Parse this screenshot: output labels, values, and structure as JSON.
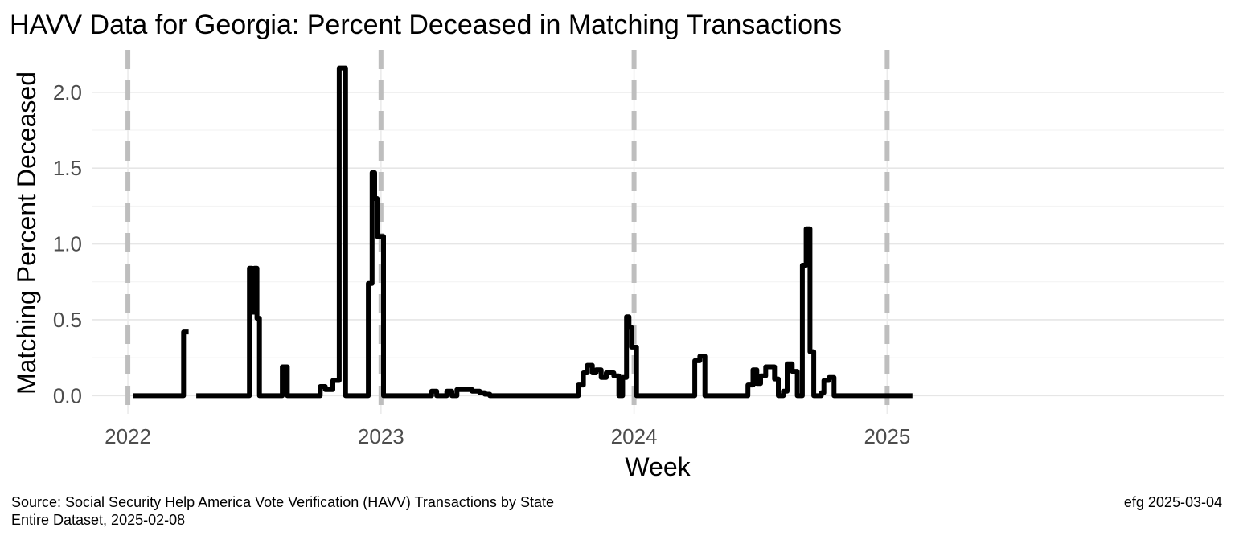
{
  "chart_data": {
    "type": "line",
    "style": "step",
    "title": "HAVV Data for Georgia:  Percent Deceased in Matching Transactions",
    "xlabel": "Week",
    "ylabel": "Matching Percent Deceased",
    "x_ticks": [
      "2022",
      "2023",
      "2024",
      "2025"
    ],
    "x_tick_values": [
      2022.0,
      2023.0,
      2024.0,
      2025.0
    ],
    "y_ticks": [
      "0.0",
      "0.5",
      "1.0",
      "1.5",
      "2.0"
    ],
    "y_tick_values": [
      0.0,
      0.5,
      1.0,
      1.5,
      2.0
    ],
    "xlim": [
      2021.86,
      2026.33
    ],
    "ylim": [
      -0.12,
      2.28
    ],
    "reference_lines": [
      2022.0,
      2023.0,
      2024.0,
      2025.0
    ],
    "reference_line_style": "dashed",
    "reference_line_color": "#bebebe",
    "line_color": "#000000",
    "grid": true,
    "series": [
      {
        "segments": [
          [
            [
              2022.02,
              0.0
            ],
            [
              2022.22,
              0.0
            ],
            [
              2022.22,
              0.42
            ],
            [
              2022.24,
              0.42
            ]
          ],
          [
            [
              2022.27,
              0.0
            ],
            [
              2022.48,
              0.0
            ],
            [
              2022.48,
              0.84
            ],
            [
              2022.49,
              0.84
            ],
            [
              2022.49,
              0.55
            ],
            [
              2022.5,
              0.55
            ],
            [
              2022.5,
              0.84
            ],
            [
              2022.51,
              0.84
            ],
            [
              2022.51,
              0.51
            ],
            [
              2022.52,
              0.51
            ],
            [
              2022.52,
              0.0
            ],
            [
              2022.61,
              0.0
            ],
            [
              2022.61,
              0.19
            ],
            [
              2022.63,
              0.19
            ],
            [
              2022.63,
              0.0
            ],
            [
              2022.76,
              0.0
            ],
            [
              2022.76,
              0.06
            ],
            [
              2022.78,
              0.06
            ],
            [
              2022.78,
              0.04
            ],
            [
              2022.81,
              0.04
            ],
            [
              2022.81,
              0.1
            ],
            [
              2022.835,
              0.1
            ],
            [
              2022.835,
              2.16
            ],
            [
              2022.86,
              2.16
            ],
            [
              2022.86,
              0.0
            ],
            [
              2022.95,
              0.0
            ],
            [
              2022.95,
              0.74
            ],
            [
              2022.965,
              0.74
            ],
            [
              2022.965,
              1.47
            ],
            [
              2022.975,
              1.47
            ],
            [
              2022.975,
              1.3
            ],
            [
              2022.985,
              1.3
            ],
            [
              2022.985,
              1.05
            ],
            [
              2023.01,
              1.05
            ],
            [
              2023.01,
              0.0
            ],
            [
              2023.2,
              0.0
            ],
            [
              2023.2,
              0.03
            ],
            [
              2023.22,
              0.03
            ],
            [
              2023.22,
              0.0
            ],
            [
              2023.26,
              0.0
            ],
            [
              2023.26,
              0.03
            ],
            [
              2023.28,
              0.03
            ],
            [
              2023.28,
              0.0
            ],
            [
              2023.3,
              0.0
            ],
            [
              2023.3,
              0.04
            ],
            [
              2023.36,
              0.04
            ],
            [
              2023.36,
              0.03
            ],
            [
              2023.39,
              0.03
            ],
            [
              2023.39,
              0.02
            ],
            [
              2023.41,
              0.02
            ],
            [
              2023.41,
              0.01
            ],
            [
              2023.43,
              0.01
            ],
            [
              2023.43,
              0.0
            ],
            [
              2023.78,
              0.0
            ],
            [
              2023.78,
              0.07
            ],
            [
              2023.8,
              0.07
            ],
            [
              2023.8,
              0.15
            ],
            [
              2023.815,
              0.15
            ],
            [
              2023.815,
              0.2
            ],
            [
              2023.835,
              0.2
            ],
            [
              2023.835,
              0.15
            ],
            [
              2023.85,
              0.15
            ],
            [
              2023.85,
              0.17
            ],
            [
              2023.87,
              0.17
            ],
            [
              2023.87,
              0.12
            ],
            [
              2023.89,
              0.12
            ],
            [
              2023.89,
              0.15
            ],
            [
              2023.92,
              0.15
            ],
            [
              2023.92,
              0.13
            ],
            [
              2023.94,
              0.13
            ],
            [
              2023.94,
              0.0
            ],
            [
              2023.955,
              0.0
            ],
            [
              2023.955,
              0.12
            ],
            [
              2023.97,
              0.12
            ],
            [
              2023.97,
              0.52
            ],
            [
              2023.98,
              0.52
            ],
            [
              2023.98,
              0.45
            ],
            [
              2023.99,
              0.45
            ],
            [
              2023.99,
              0.32
            ],
            [
              2024.01,
              0.32
            ],
            [
              2024.01,
              0.0
            ],
            [
              2024.24,
              0.0
            ],
            [
              2024.24,
              0.23
            ],
            [
              2024.26,
              0.23
            ],
            [
              2024.26,
              0.26
            ],
            [
              2024.28,
              0.26
            ],
            [
              2024.28,
              0.0
            ],
            [
              2024.45,
              0.0
            ],
            [
              2024.45,
              0.07
            ],
            [
              2024.47,
              0.07
            ],
            [
              2024.47,
              0.17
            ],
            [
              2024.485,
              0.17
            ],
            [
              2024.485,
              0.08
            ],
            [
              2024.5,
              0.08
            ],
            [
              2024.5,
              0.13
            ],
            [
              2024.52,
              0.13
            ],
            [
              2024.52,
              0.19
            ],
            [
              2024.555,
              0.19
            ],
            [
              2024.555,
              0.11
            ],
            [
              2024.57,
              0.11
            ],
            [
              2024.57,
              0.0
            ],
            [
              2024.59,
              0.0
            ],
            [
              2024.59,
              0.03
            ],
            [
              2024.605,
              0.03
            ],
            [
              2024.605,
              0.21
            ],
            [
              2024.625,
              0.21
            ],
            [
              2024.625,
              0.16
            ],
            [
              2024.645,
              0.16
            ],
            [
              2024.645,
              0.0
            ],
            [
              2024.665,
              0.0
            ],
            [
              2024.665,
              0.86
            ],
            [
              2024.68,
              0.86
            ],
            [
              2024.68,
              1.1
            ],
            [
              2024.695,
              1.1
            ],
            [
              2024.695,
              0.29
            ],
            [
              2024.71,
              0.29
            ],
            [
              2024.71,
              0.0
            ],
            [
              2024.74,
              0.0
            ],
            [
              2024.74,
              0.02
            ],
            [
              2024.75,
              0.02
            ],
            [
              2024.75,
              0.1
            ],
            [
              2024.77,
              0.1
            ],
            [
              2024.77,
              0.12
            ],
            [
              2024.79,
              0.12
            ],
            [
              2024.79,
              0.0
            ],
            [
              2025.1,
              0.0
            ]
          ]
        ]
      }
    ]
  },
  "caption": {
    "source_line1": "Source:  Social Security Help America Vote Verification (HAVV) Transactions by State",
    "source_line2": "Entire Dataset, 2025-02-08",
    "credit": "efg 2025-03-04"
  }
}
